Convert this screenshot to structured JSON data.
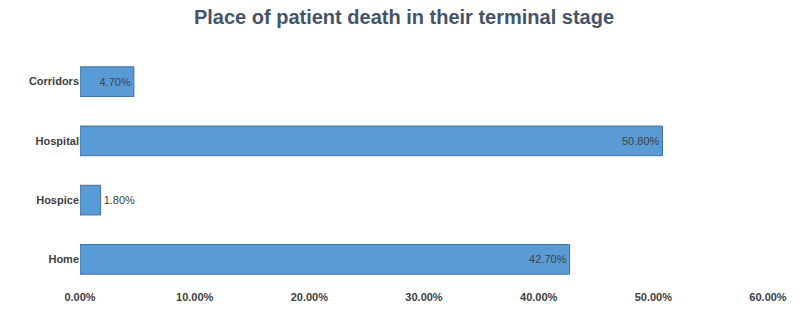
{
  "chart_data": {
    "type": "bar",
    "orientation": "horizontal",
    "title": "Place of patient death in their terminal stage",
    "categories": [
      "Corridors",
      "Hospital",
      "Hospice",
      "Home"
    ],
    "values": [
      4.7,
      50.8,
      1.8,
      42.7
    ],
    "value_labels": [
      "4.70%",
      "50.80%",
      "1.80%",
      "42.70%"
    ],
    "data_labels": true,
    "color": "#5b9bd5",
    "xlim": [
      0,
      60
    ],
    "xticks": [
      {
        "value": 0,
        "label": "0.00%"
      },
      {
        "value": 10,
        "label": "10.00%"
      },
      {
        "value": 20,
        "label": "20.00%"
      },
      {
        "value": 30,
        "label": "30.00%"
      },
      {
        "value": 40,
        "label": "40.00%"
      },
      {
        "value": 50,
        "label": "50.00%"
      },
      {
        "value": 60,
        "label": "60.00%"
      }
    ],
    "grid": false
  }
}
